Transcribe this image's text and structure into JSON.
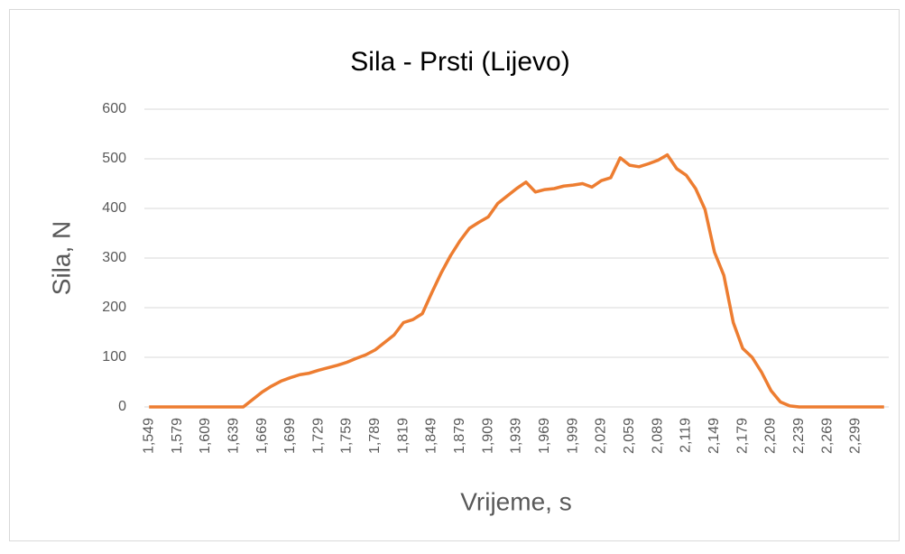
{
  "chart_data": {
    "type": "line",
    "title": "Sila - Prsti (Lijevo)",
    "x_label": "Vrijeme, s",
    "y_label": "Sila, N",
    "categories": [
      "1,549",
      null,
      null,
      "1,579",
      null,
      null,
      "1,609",
      null,
      null,
      "1,639",
      null,
      null,
      "1,669",
      null,
      null,
      "1,699",
      null,
      null,
      "1,729",
      null,
      null,
      "1,759",
      null,
      null,
      "1,789",
      null,
      null,
      "1,819",
      null,
      null,
      "1,849",
      null,
      null,
      "1,879",
      null,
      null,
      "1,909",
      null,
      null,
      "1,939",
      null,
      null,
      "1,969",
      null,
      null,
      "1,999",
      null,
      null,
      "2,029",
      null,
      null,
      "2,059",
      null,
      null,
      "2,089",
      null,
      null,
      "2,119",
      null,
      null,
      "2,149",
      null,
      null,
      "2,179",
      null,
      null,
      "2,209",
      null,
      null,
      "2,239",
      null,
      null,
      "2,269",
      null,
      null,
      "2,299",
      null,
      null,
      null
    ],
    "series": [
      {
        "name": "Sila",
        "color": "#ED7D31",
        "values": [
          0,
          0,
          0,
          0,
          0,
          0,
          0,
          0,
          0,
          0,
          0,
          15,
          30,
          42,
          52,
          59,
          65,
          68,
          74,
          79,
          84,
          90,
          98,
          105,
          115,
          130,
          145,
          170,
          176,
          188,
          230,
          270,
          305,
          335,
          360,
          372,
          383,
          410,
          425,
          440,
          453,
          433,
          438,
          440,
          445,
          447,
          450,
          443,
          456,
          462,
          502,
          487,
          484,
          490,
          497,
          508,
          480,
          467,
          440,
          398,
          312,
          265,
          170,
          118,
          100,
          70,
          33,
          10,
          2,
          0,
          0,
          0,
          0,
          0,
          0,
          0,
          0,
          0,
          0
        ]
      }
    ],
    "ylim": [
      0,
      600
    ],
    "yticks": [
      0,
      100,
      200,
      300,
      400,
      500,
      600
    ],
    "grid": true
  }
}
